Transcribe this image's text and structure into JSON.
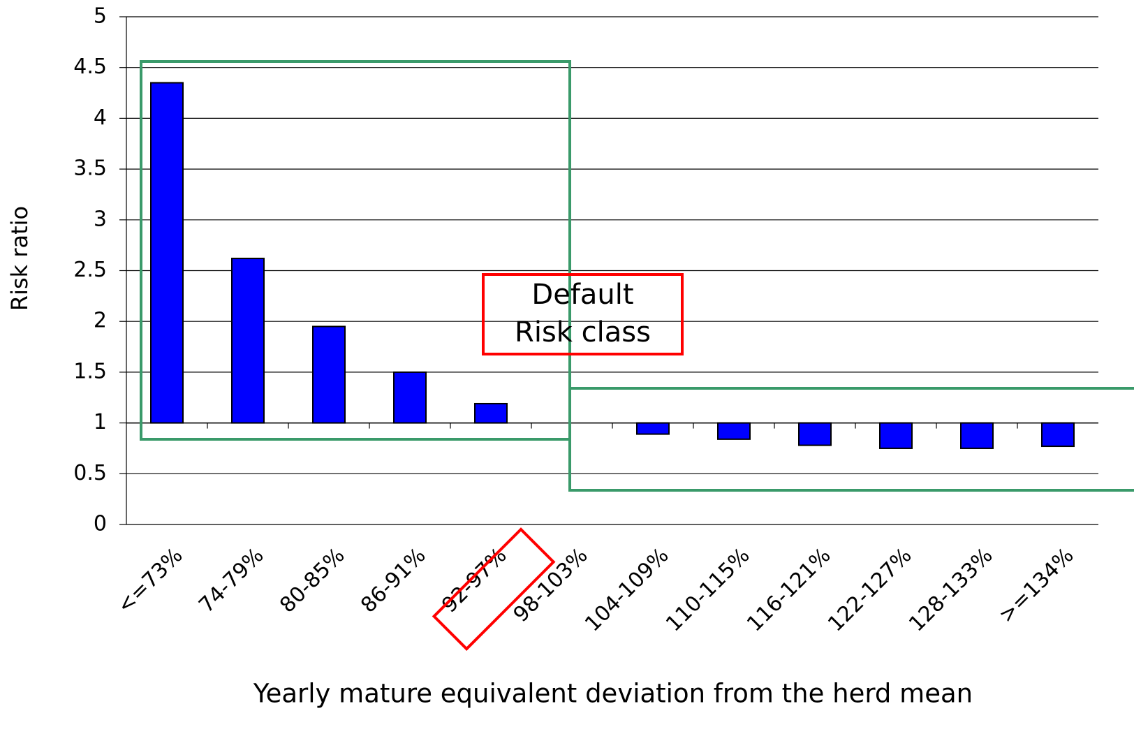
{
  "chart_data": {
    "type": "bar",
    "x_label": "Yearly mature equivalent deviation from the herd mean",
    "y_label": "Risk ratio",
    "categories": [
      "<=73%",
      "74-79%",
      "80-85%",
      "86-91%",
      "92-97%",
      "98-103%",
      "104-109%",
      "110-115%",
      "116-121%",
      "122-127%",
      "128-133%",
      ">=134%"
    ],
    "values": [
      4.35,
      2.62,
      1.95,
      1.5,
      1.19,
      1,
      0.89,
      0.84,
      0.78,
      0.75,
      0.75,
      0.77
    ],
    "bar_base": 1,
    "color": "#0000ff",
    "ylim": [
      0,
      5
    ],
    "yticks": [
      0,
      0.5,
      1,
      1.5,
      2,
      2.5,
      3,
      3.5,
      4,
      4.5,
      5
    ],
    "grid": true,
    "annotation": "Default Risk class"
  }
}
